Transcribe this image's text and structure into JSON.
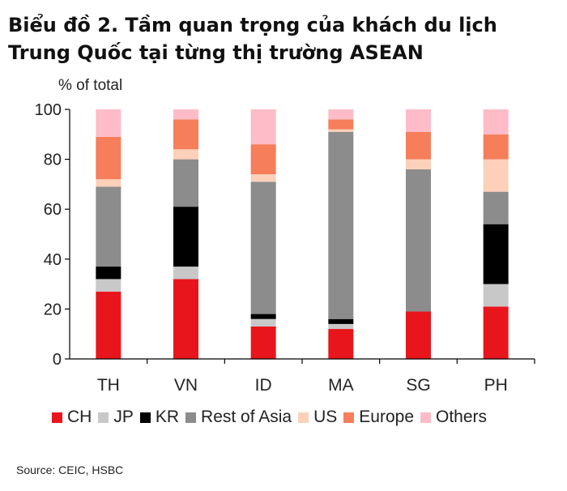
{
  "title_lines": [
    "Biểu đồ 2. Tầm quan trọng của khách du lịch",
    "Trung Quốc tại từng thị trường ASEAN"
  ],
  "source": "Source:  CEIC, HSBC",
  "chart_data": {
    "type": "bar",
    "stacked": true,
    "ylabel": "% of total",
    "ylim": [
      0,
      100
    ],
    "yticks": [
      0,
      20,
      40,
      60,
      80,
      100
    ],
    "grid": false,
    "legend_position": "bottom",
    "categories": [
      "TH",
      "VN",
      "ID",
      "MA",
      "SG",
      "PH"
    ],
    "series": [
      {
        "name": "CH",
        "color": "#e8161c",
        "values": [
          27,
          32,
          13,
          12,
          19,
          21
        ]
      },
      {
        "name": "JP",
        "color": "#c8c8c8",
        "values": [
          5,
          5,
          3,
          2,
          0,
          9
        ]
      },
      {
        "name": "KR",
        "color": "#000000",
        "values": [
          5,
          24,
          2,
          2,
          0,
          24
        ]
      },
      {
        "name": "Rest of Asia",
        "color": "#8c8c8c",
        "values": [
          32,
          19,
          53,
          75,
          57,
          13
        ]
      },
      {
        "name": "US",
        "color": "#fcd0b9",
        "values": [
          3,
          4,
          3,
          1,
          4,
          13
        ]
      },
      {
        "name": "Europe",
        "color": "#f67e5a",
        "values": [
          17,
          12,
          12,
          4,
          11,
          10
        ]
      },
      {
        "name": "Others",
        "color": "#fdbcc8",
        "values": [
          11,
          4,
          14,
          4,
          9,
          10
        ]
      }
    ]
  }
}
